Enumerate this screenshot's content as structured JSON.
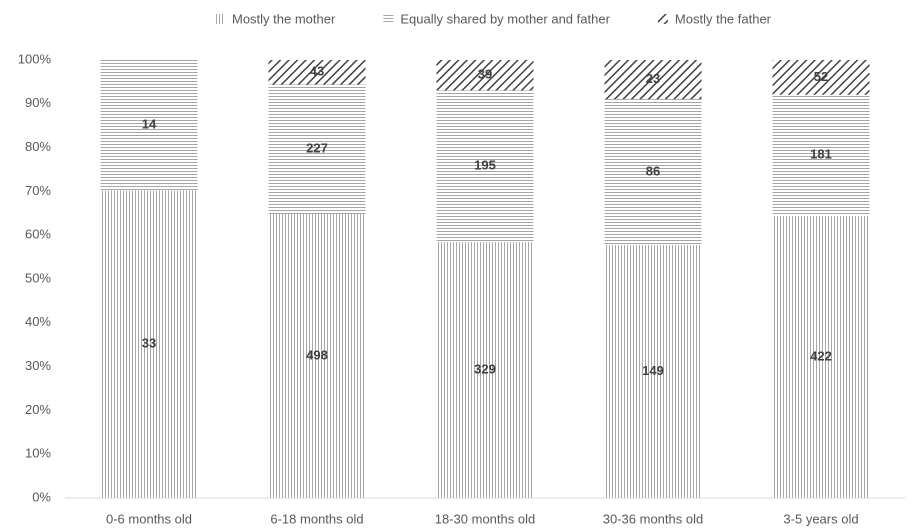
{
  "chart_data": {
    "type": "bar",
    "stacking": "percent",
    "categories": [
      "0-6 months old",
      "6-18 months old",
      "18-30 months old",
      "30-36 months old",
      "3-5 years old"
    ],
    "series": [
      {
        "name": "Mostly the mother",
        "color": "#a6a6a6",
        "pattern": "vertical",
        "values": [
          33,
          498,
          329,
          149,
          422
        ]
      },
      {
        "name": "Equally shared by mother and father",
        "color": "#a6a6a6",
        "pattern": "horizontal",
        "values": [
          14,
          227,
          195,
          86,
          181
        ]
      },
      {
        "name": "Mostly the father",
        "color": "#404040",
        "pattern": "diagonal",
        "values": [
          null,
          43,
          39,
          23,
          52
        ]
      }
    ],
    "ylim": [
      0,
      100
    ],
    "yticks": [
      {
        "value": 0,
        "label": "0%"
      },
      {
        "value": 10,
        "label": "10%"
      },
      {
        "value": 20,
        "label": "20%"
      },
      {
        "value": 30,
        "label": "30%"
      },
      {
        "value": 40,
        "label": "40%"
      },
      {
        "value": 50,
        "label": "50%"
      },
      {
        "value": 60,
        "label": "60%"
      },
      {
        "value": 70,
        "label": "70%"
      },
      {
        "value": 80,
        "label": "80%"
      },
      {
        "value": 90,
        "label": "90%"
      },
      {
        "value": 100,
        "label": "100%"
      }
    ],
    "grid": false,
    "legend": "top"
  }
}
